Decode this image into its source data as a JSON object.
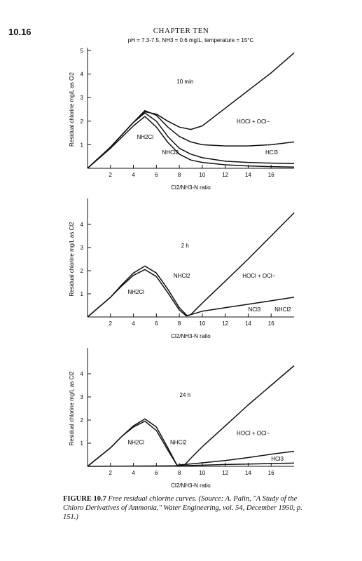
{
  "header": {
    "page_number": "10.16",
    "chapter": "CHAPTER TEN"
  },
  "caption": {
    "label": "FIGURE 10.7",
    "text": "Free residual chlorine curves. (Source: A. Palin, \"A Study of the Chloro Derivatives of Ammonia,\" Water Engineering, vol. 54, December 1950, p. 151.)"
  },
  "chart_data": [
    {
      "type": "line",
      "title": "pH = 7.3-7.5, NH3 = 0.6 mg/L, temperature = 15°C",
      "panel_label": "10 min",
      "xlabel": "Cl2/NH3-N ratio",
      "ylabel": "Residual chlorine mg/L as Cl2",
      "xlim": [
        0,
        18
      ],
      "ylim": [
        0,
        5
      ],
      "xticks": [
        2,
        4,
        6,
        8,
        10,
        12,
        14,
        16
      ],
      "yticks": [
        1,
        2,
        3,
        4,
        5
      ],
      "annotations": [
        {
          "text": "NH2Cl",
          "x": 4.3,
          "y": 1.25
        },
        {
          "text": "NHCl2",
          "x": 6.5,
          "y": 0.6
        },
        {
          "text": "HOCl + OCl−",
          "x": 13.0,
          "y": 1.9
        },
        {
          "text": "HCl3",
          "x": 15.5,
          "y": 0.6
        }
      ],
      "series": [
        {
          "values": [
            [
              0,
              0
            ],
            [
              2,
              0.9
            ],
            [
              4,
              1.95
            ],
            [
              5,
              2.4
            ],
            [
              6,
              2.3
            ],
            [
              7,
              2.0
            ],
            [
              8,
              1.75
            ],
            [
              9,
              1.65
            ],
            [
              10,
              1.8
            ],
            [
              12,
              2.55
            ],
            [
              14,
              3.3
            ],
            [
              16,
              4.05
            ],
            [
              18,
              4.9
            ]
          ]
        },
        {
          "values": [
            [
              0,
              0
            ],
            [
              2,
              0.9
            ],
            [
              4,
              1.95
            ],
            [
              5,
              2.45
            ],
            [
              6,
              2.25
            ],
            [
              7,
              1.75
            ],
            [
              8,
              1.35
            ],
            [
              9,
              1.12
            ],
            [
              10,
              1.0
            ],
            [
              12,
              0.95
            ],
            [
              14,
              0.95
            ],
            [
              16,
              1.0
            ],
            [
              18,
              1.12
            ]
          ]
        },
        {
          "values": [
            [
              0,
              0
            ],
            [
              2,
              0.9
            ],
            [
              4,
              1.95
            ],
            [
              5,
              2.35
            ],
            [
              6,
              2.0
            ],
            [
              7,
              1.35
            ],
            [
              8,
              0.85
            ],
            [
              9,
              0.6
            ],
            [
              10,
              0.45
            ],
            [
              12,
              0.3
            ],
            [
              14,
              0.25
            ],
            [
              16,
              0.22
            ],
            [
              18,
              0.2
            ]
          ]
        },
        {
          "values": [
            [
              0,
              0
            ],
            [
              2,
              0.85
            ],
            [
              4,
              1.8
            ],
            [
              5,
              2.2
            ],
            [
              6,
              1.75
            ],
            [
              7,
              1.1
            ],
            [
              8,
              0.6
            ],
            [
              9,
              0.35
            ],
            [
              10,
              0.25
            ],
            [
              12,
              0.15
            ],
            [
              14,
              0.1
            ],
            [
              16,
              0.07
            ],
            [
              18,
              0.05
            ]
          ]
        }
      ]
    },
    {
      "type": "line",
      "panel_label": "2 h",
      "xlabel": "Cl2/NH3-N ratio",
      "ylabel": "Residual chlorine mg/L as Cl2",
      "xlim": [
        0,
        18
      ],
      "ylim": [
        0,
        5
      ],
      "xticks": [
        2,
        4,
        6,
        8,
        10,
        12,
        14,
        16
      ],
      "yticks": [
        1,
        2,
        3,
        4
      ],
      "annotations": [
        {
          "text": "NHCl2",
          "x": 7.5,
          "y": 1.7
        },
        {
          "text": "NH2Cl",
          "x": 3.5,
          "y": 1.0
        },
        {
          "text": "HOCl + OCl−",
          "x": 13.5,
          "y": 1.7
        },
        {
          "text": "NCl3",
          "x": 14.0,
          "y": 0.25
        },
        {
          "text": "NHCl2",
          "x": 16.3,
          "y": 0.25
        }
      ],
      "series": [
        {
          "values": [
            [
              0,
              0
            ],
            [
              2,
              0.85
            ],
            [
              3,
              1.4
            ],
            [
              4,
              1.9
            ],
            [
              5,
              2.2
            ],
            [
              6,
              1.9
            ],
            [
              7,
              1.2
            ],
            [
              8,
              0.4
            ],
            [
              8.7,
              0.05
            ],
            [
              9,
              0.1
            ],
            [
              10,
              0.6
            ],
            [
              12,
              1.55
            ],
            [
              14,
              2.5
            ],
            [
              16,
              3.5
            ],
            [
              18,
              4.5
            ]
          ]
        },
        {
          "values": [
            [
              0,
              0
            ],
            [
              2,
              0.85
            ],
            [
              3,
              1.35
            ],
            [
              4,
              1.8
            ],
            [
              5,
              2.05
            ],
            [
              6,
              1.75
            ],
            [
              7,
              1.05
            ],
            [
              8,
              0.3
            ],
            [
              8.6,
              0.05
            ],
            [
              9,
              0.1
            ],
            [
              10,
              0.25
            ],
            [
              12,
              0.4
            ],
            [
              14,
              0.55
            ],
            [
              16,
              0.7
            ],
            [
              18,
              0.85
            ]
          ]
        }
      ]
    },
    {
      "type": "line",
      "panel_label": "24 h",
      "xlabel": "Cl2/NH3-N ratio",
      "ylabel": "Residual chlorine mg/L as Cl2",
      "xlim": [
        0,
        18
      ],
      "ylim": [
        0,
        5
      ],
      "xticks": [
        2,
        4,
        6,
        8,
        10,
        12,
        14,
        16
      ],
      "yticks": [
        1,
        2,
        3,
        4
      ],
      "annotations": [
        {
          "text": "NH2Cl",
          "x": 3.5,
          "y": 0.95
        },
        {
          "text": "NHCl2",
          "x": 7.2,
          "y": 0.95
        },
        {
          "text": "HOCl + OCl−",
          "x": 13.0,
          "y": 1.35
        },
        {
          "text": "HCl3",
          "x": 16.0,
          "y": 0.25
        }
      ],
      "series": [
        {
          "values": [
            [
              0,
              0
            ],
            [
              2,
              0.8
            ],
            [
              3,
              1.3
            ],
            [
              4,
              1.75
            ],
            [
              5,
              2.05
            ],
            [
              6,
              1.7
            ],
            [
              7,
              0.8
            ],
            [
              7.8,
              0.05
            ],
            [
              8.5,
              0.08
            ],
            [
              9,
              0.35
            ],
            [
              10,
              0.85
            ],
            [
              12,
              1.75
            ],
            [
              14,
              2.65
            ],
            [
              16,
              3.5
            ],
            [
              18,
              4.35
            ]
          ]
        },
        {
          "values": [
            [
              0,
              0
            ],
            [
              2,
              0.8
            ],
            [
              3,
              1.3
            ],
            [
              4,
              1.7
            ],
            [
              5,
              1.95
            ],
            [
              6,
              1.55
            ],
            [
              7,
              0.7
            ],
            [
              7.8,
              0.05
            ],
            [
              8.5,
              0.08
            ],
            [
              10,
              0.15
            ],
            [
              12,
              0.25
            ],
            [
              14,
              0.38
            ],
            [
              16,
              0.52
            ],
            [
              18,
              0.65
            ]
          ]
        },
        {
          "values": [
            [
              0,
              0
            ],
            [
              8,
              0.02
            ],
            [
              10,
              0.05
            ],
            [
              12,
              0.08
            ],
            [
              14,
              0.1
            ],
            [
              16,
              0.12
            ],
            [
              18,
              0.14
            ]
          ]
        }
      ]
    }
  ]
}
